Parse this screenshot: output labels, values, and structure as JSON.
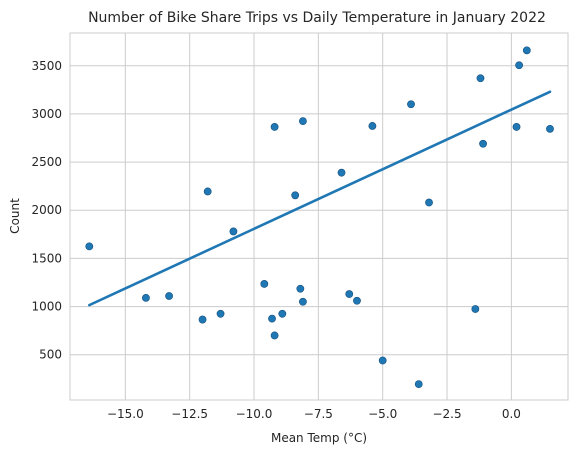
{
  "chart_data": {
    "type": "scatter",
    "title": "Number of Bike Share Trips vs Daily Temperature in January 2022",
    "xlabel": "Mean Temp (°C)",
    "ylabel": "Count",
    "xlim": [
      -17.15,
      2.2
    ],
    "ylim": [
      30,
      3840
    ],
    "xticks": [
      -15.0,
      -12.5,
      -10.0,
      -7.5,
      -5.0,
      -2.5,
      0.0
    ],
    "xtick_labels": [
      "−15.0",
      "−12.5",
      "−10.0",
      "−7.5",
      "−5.0",
      "−2.5",
      "0.0"
    ],
    "yticks": [
      500,
      1000,
      1500,
      2000,
      2500,
      3000,
      3500
    ],
    "ytick_labels": [
      "500",
      "1000",
      "1500",
      "2000",
      "2500",
      "3000",
      "3500"
    ],
    "grid": true,
    "point_color": "#1f77b4",
    "line_color": "#1f77b4",
    "points": [
      {
        "x": -16.4,
        "y": 1625
      },
      {
        "x": -14.2,
        "y": 1090
      },
      {
        "x": -13.3,
        "y": 1110
      },
      {
        "x": -12.0,
        "y": 865
      },
      {
        "x": -11.8,
        "y": 2195
      },
      {
        "x": -11.3,
        "y": 925
      },
      {
        "x": -10.8,
        "y": 1780
      },
      {
        "x": -9.6,
        "y": 1235
      },
      {
        "x": -9.3,
        "y": 875
      },
      {
        "x": -9.2,
        "y": 700
      },
      {
        "x": -9.2,
        "y": 2865
      },
      {
        "x": -8.9,
        "y": 925
      },
      {
        "x": -8.4,
        "y": 2155
      },
      {
        "x": -8.2,
        "y": 1185
      },
      {
        "x": -8.1,
        "y": 1050
      },
      {
        "x": -8.1,
        "y": 2925
      },
      {
        "x": -6.6,
        "y": 2390
      },
      {
        "x": -6.3,
        "y": 1130
      },
      {
        "x": -6.0,
        "y": 1060
      },
      {
        "x": -5.4,
        "y": 2875
      },
      {
        "x": -5.0,
        "y": 440
      },
      {
        "x": -3.9,
        "y": 3100
      },
      {
        "x": -3.6,
        "y": 195
      },
      {
        "x": -3.2,
        "y": 2080
      },
      {
        "x": -1.4,
        "y": 975
      },
      {
        "x": -1.2,
        "y": 3370
      },
      {
        "x": -1.1,
        "y": 2690
      },
      {
        "x": 0.2,
        "y": 2865
      },
      {
        "x": 0.3,
        "y": 3505
      },
      {
        "x": 0.6,
        "y": 3660
      },
      {
        "x": 1.5,
        "y": 2845
      }
    ],
    "regression_line": {
      "x": [
        -16.4,
        1.5
      ],
      "y": [
        1015,
        3230
      ]
    }
  }
}
